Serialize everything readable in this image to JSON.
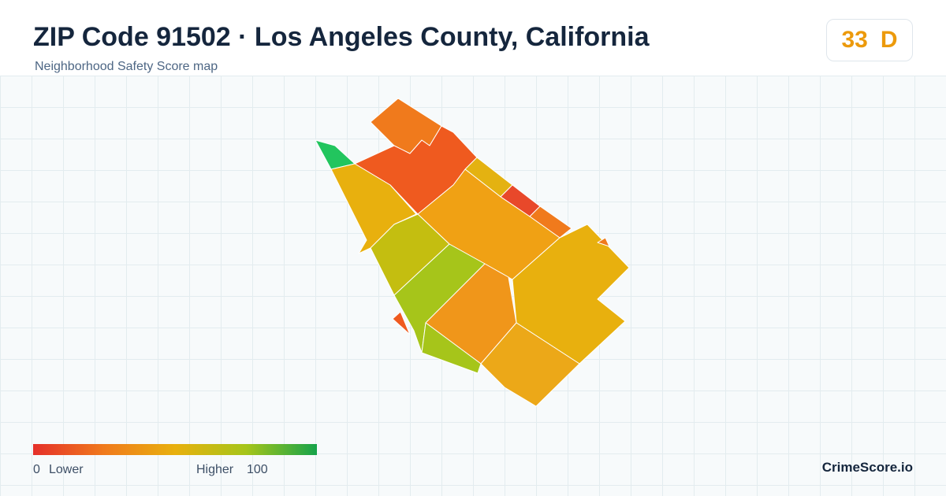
{
  "header": {
    "title": "ZIP Code 91502 · Los Angeles County, California",
    "subtitle": "Neighborhood Safety Score map"
  },
  "score": {
    "value": "33",
    "grade": "D"
  },
  "legend": {
    "min": "0",
    "low_label": "Lower",
    "high_label": "Higher",
    "max": "100"
  },
  "brand": "CrimeScore.io"
}
